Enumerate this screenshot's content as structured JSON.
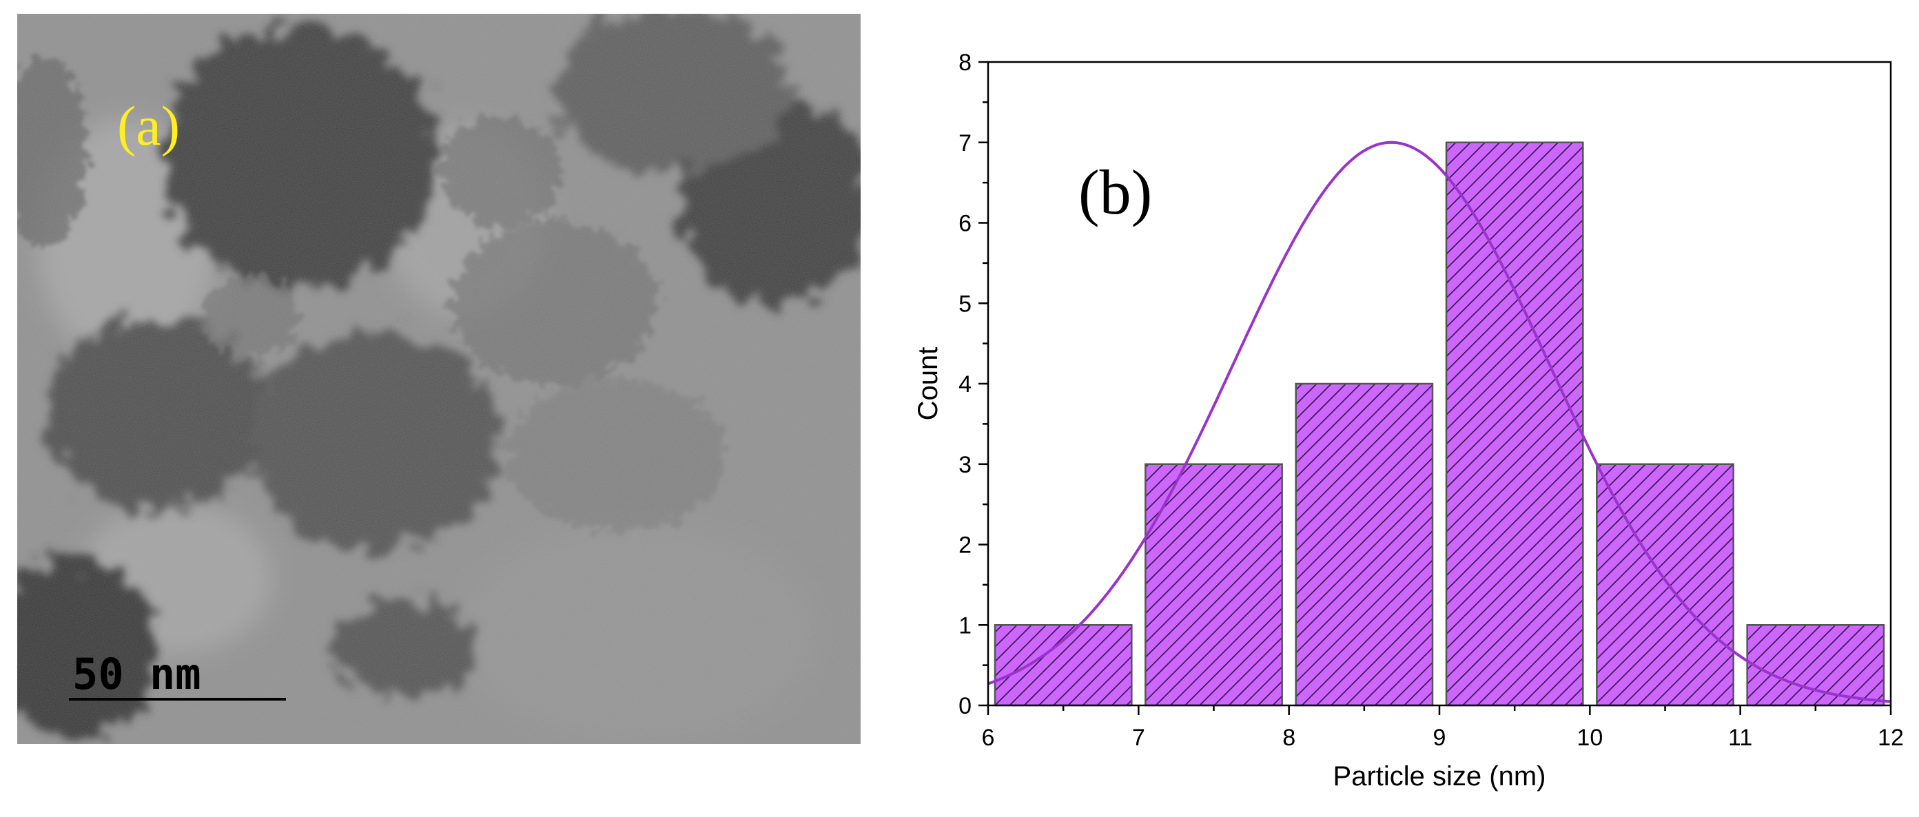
{
  "panel_a": {
    "label": "(a)",
    "label_color": "#ffee22",
    "scale_bar_text": "50  nm"
  },
  "chart_data": {
    "type": "bar",
    "panel_label": "(b)",
    "xlabel": "Particle size (nm)",
    "ylabel": "Count",
    "xlim": [
      6,
      12
    ],
    "ylim": [
      0,
      8
    ],
    "x_ticks": [
      6,
      7,
      8,
      9,
      10,
      11,
      12
    ],
    "y_ticks": [
      0,
      1,
      2,
      3,
      4,
      5,
      6,
      7,
      8
    ],
    "bins": [
      {
        "start": 6,
        "end": 7,
        "count": 1
      },
      {
        "start": 7,
        "end": 8,
        "count": 3
      },
      {
        "start": 8,
        "end": 9,
        "count": 4
      },
      {
        "start": 9,
        "end": 10,
        "count": 7
      },
      {
        "start": 10,
        "end": 11,
        "count": 3
      },
      {
        "start": 11,
        "end": 12,
        "count": 1
      }
    ],
    "fit_curve": {
      "type": "gaussian",
      "mean": 8.68,
      "peak": 7.0,
      "sigma": 1.05
    },
    "colors": {
      "bar_fill": "#cc66ff",
      "hatch": "#3a1a4a",
      "bar_edge": "#555555",
      "curve": "#9933cc",
      "axis": "#000000"
    },
    "grid": false
  }
}
